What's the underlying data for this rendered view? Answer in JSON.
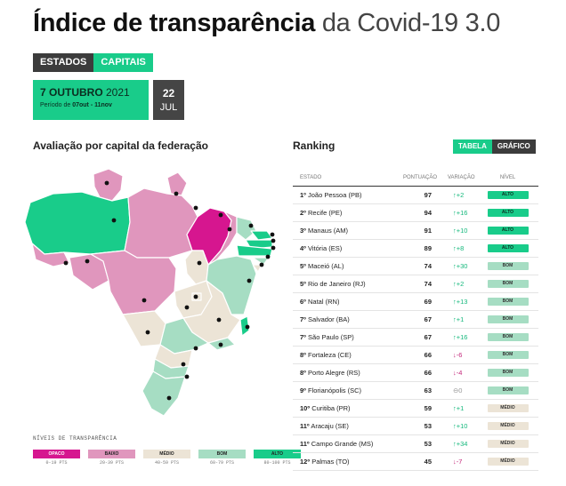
{
  "header": {
    "title_bold": "Índice de transparência",
    "title_light": " da Covid-19 3.0"
  },
  "tabs": [
    {
      "label": "ESTADOS"
    },
    {
      "label": "CAPITAIS"
    }
  ],
  "date_selector": {
    "date_bold": "7 OUTUBRO",
    "year": " 2021",
    "period_prefix": "Período de ",
    "period_range": "07out - 11nov",
    "other_day": "22",
    "other_month": "JUL"
  },
  "map_section": {
    "title": "Avaliação por capital da federação"
  },
  "ranking": {
    "title": "Ranking",
    "toggle": {
      "table_label": "TABELA",
      "chart_label": "GRÁFICO"
    },
    "columns": {
      "state": "ESTADO",
      "score": "PONTUAÇÃO",
      "variation": "VARIAÇÃO",
      "level": "NÍVEL"
    },
    "rows": [
      {
        "rank": "1º",
        "name": "João Pessoa (PB)",
        "score": "97",
        "arrow": "↑",
        "change": "+2",
        "dir": "up",
        "level": "ALTO"
      },
      {
        "rank": "2º",
        "name": "Recife (PE)",
        "score": "94",
        "arrow": "↑",
        "change": "+16",
        "dir": "up",
        "level": "ALTO"
      },
      {
        "rank": "3º",
        "name": "Manaus (AM)",
        "score": "91",
        "arrow": "↑",
        "change": "+10",
        "dir": "up",
        "level": "ALTO"
      },
      {
        "rank": "4º",
        "name": "Vitória (ES)",
        "score": "89",
        "arrow": "↑",
        "change": "+8",
        "dir": "up",
        "level": "ALTO"
      },
      {
        "rank": "5º",
        "name": "Maceió (AL)",
        "score": "74",
        "arrow": "↑",
        "change": "+30",
        "dir": "up",
        "level": "BOM"
      },
      {
        "rank": "5º",
        "name": "Rio de Janeiro (RJ)",
        "score": "74",
        "arrow": "↑",
        "change": "+2",
        "dir": "up",
        "level": "BOM"
      },
      {
        "rank": "6º",
        "name": "Natal (RN)",
        "score": "69",
        "arrow": "↑",
        "change": "+13",
        "dir": "up",
        "level": "BOM"
      },
      {
        "rank": "7º",
        "name": "Salvador (BA)",
        "score": "67",
        "arrow": "↑",
        "change": "+1",
        "dir": "up",
        "level": "BOM"
      },
      {
        "rank": "7º",
        "name": "São Paulo (SP)",
        "score": "67",
        "arrow": "↑",
        "change": "+16",
        "dir": "up",
        "level": "BOM"
      },
      {
        "rank": "8º",
        "name": "Fortaleza (CE)",
        "score": "66",
        "arrow": "↓",
        "change": "-6",
        "dir": "down",
        "level": "BOM"
      },
      {
        "rank": "8º",
        "name": "Porto Alegre (RS)",
        "score": "66",
        "arrow": "↓",
        "change": "-4",
        "dir": "down",
        "level": "BOM"
      },
      {
        "rank": "9º",
        "name": "Florianópolis (SC)",
        "score": "63",
        "arrow": "⊖",
        "change": "0",
        "dir": "eq",
        "level": "BOM"
      },
      {
        "rank": "10º",
        "name": "Curitiba (PR)",
        "score": "59",
        "arrow": "↑",
        "change": "+1",
        "dir": "up",
        "level": "MÉDIO"
      },
      {
        "rank": "11º",
        "name": "Aracaju (SE)",
        "score": "53",
        "arrow": "↑",
        "change": "+10",
        "dir": "up",
        "level": "MÉDIO"
      },
      {
        "rank": "11º",
        "name": "Campo Grande (MS)",
        "score": "53",
        "arrow": "↑",
        "change": "+34",
        "dir": "up",
        "level": "MÉDIO"
      },
      {
        "rank": "12º",
        "name": "Palmas (TO)",
        "score": "45",
        "arrow": "↓",
        "change": "-7",
        "dir": "down",
        "level": "MÉDIO"
      }
    ]
  },
  "legend": {
    "title": "NÍVEIS DE TRANSPARÊNCIA",
    "items": [
      {
        "label": "OPACO",
        "range": "0-19 PTS",
        "color": "#d6168f"
      },
      {
        "label": "BAIXO",
        "range": "20-39 PTS",
        "color": "#e096bd"
      },
      {
        "label": "MÉDIO",
        "range": "40-59 PTS",
        "color": "#ece4d6"
      },
      {
        "label": "BOM",
        "range": "60-79 PTS",
        "color": "#a6ddc3"
      },
      {
        "label": "ALTO",
        "range": "80-100 PTS",
        "color": "#19cc8a"
      }
    ]
  },
  "level_colors": {
    "OPACO": "#d6168f",
    "BAIXO": "#e096bd",
    "MÉDIO": "#ece4d6",
    "BOM": "#a6ddc3",
    "ALTO": "#19cc8a"
  }
}
